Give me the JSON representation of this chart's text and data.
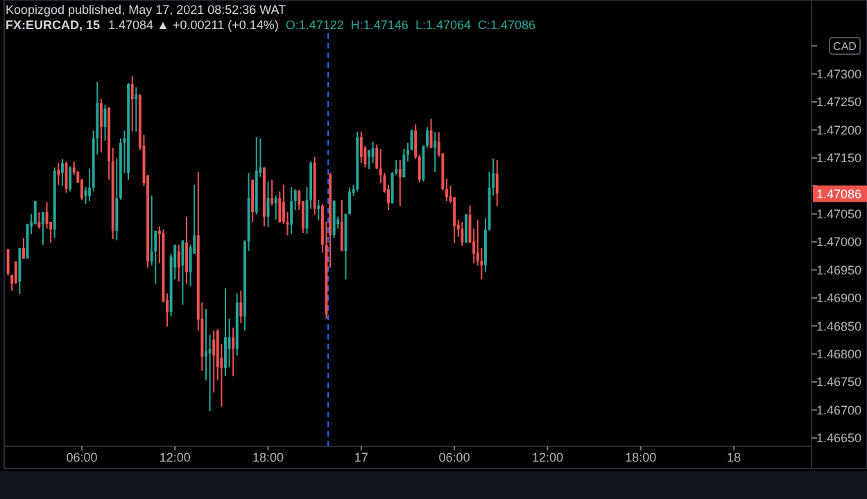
{
  "chart_data": {
    "type": "candlestick",
    "title": "FX:EURCAD, 15",
    "subtitle": "Koopizgod published, May 17, 2021 08:52:36 WAT",
    "annotations": [
      "1.47084 ▲ +0.00211 (+0.14%)",
      "O:1.47122",
      "H:1.47146",
      "L:1.47064",
      "C:1.47086",
      "1.47086",
      "CAD"
    ],
    "x": [
      "2021-05-16T01:15",
      "2021-05-16T01:30",
      "2021-05-16T01:45",
      "2021-05-16T02:00",
      "2021-05-16T02:15",
      "2021-05-16T02:30",
      "2021-05-16T02:45",
      "2021-05-16T03:00",
      "2021-05-16T03:15",
      "2021-05-16T03:30",
      "2021-05-16T03:45",
      "2021-05-16T04:00",
      "2021-05-16T04:15",
      "2021-05-16T04:30",
      "2021-05-16T04:45",
      "2021-05-16T05:00",
      "2021-05-16T05:15",
      "2021-05-16T05:30",
      "2021-05-16T05:45",
      "2021-05-16T06:00",
      "2021-05-16T06:15",
      "2021-05-16T06:30",
      "2021-05-16T06:45",
      "2021-05-16T07:00",
      "2021-05-16T07:15",
      "2021-05-16T07:30",
      "2021-05-16T07:45",
      "2021-05-16T08:00",
      "2021-05-16T08:15",
      "2021-05-16T08:30",
      "2021-05-16T08:45",
      "2021-05-16T09:00",
      "2021-05-16T09:15",
      "2021-05-16T09:30",
      "2021-05-16T09:45",
      "2021-05-16T10:00",
      "2021-05-16T10:15",
      "2021-05-16T10:30",
      "2021-05-16T10:45",
      "2021-05-16T11:00",
      "2021-05-16T11:15",
      "2021-05-16T11:30",
      "2021-05-16T11:45",
      "2021-05-16T12:00",
      "2021-05-16T12:15",
      "2021-05-16T12:30",
      "2021-05-16T12:45",
      "2021-05-16T13:00",
      "2021-05-16T13:15",
      "2021-05-16T13:30",
      "2021-05-16T13:45",
      "2021-05-16T14:00",
      "2021-05-16T14:15",
      "2021-05-16T14:30",
      "2021-05-16T14:45",
      "2021-05-16T15:00",
      "2021-05-16T15:15",
      "2021-05-16T15:30",
      "2021-05-16T15:45",
      "2021-05-16T16:00",
      "2021-05-16T16:15",
      "2021-05-16T16:30",
      "2021-05-16T16:45",
      "2021-05-16T17:00",
      "2021-05-16T17:15",
      "2021-05-16T17:30",
      "2021-05-16T17:45",
      "2021-05-16T18:00",
      "2021-05-16T18:15",
      "2021-05-16T18:30",
      "2021-05-16T18:45",
      "2021-05-16T19:00",
      "2021-05-16T19:15",
      "2021-05-16T19:30",
      "2021-05-16T19:45",
      "2021-05-16T20:00",
      "2021-05-16T20:15",
      "2021-05-16T20:30",
      "2021-05-16T20:45",
      "2021-05-16T21:00",
      "2021-05-16T21:15",
      "2021-05-16T21:30",
      "2021-05-16T21:45",
      "2021-05-16T22:00",
      "2021-05-16T22:15",
      "2021-05-16T22:30",
      "2021-05-16T22:45",
      "2021-05-16T23:00",
      "2021-05-16T23:15",
      "2021-05-16T23:30",
      "2021-05-16T23:45",
      "2021-05-17T00:00",
      "2021-05-17T00:15",
      "2021-05-17T00:30",
      "2021-05-17T00:45",
      "2021-05-17T01:00",
      "2021-05-17T01:15",
      "2021-05-17T01:30",
      "2021-05-17T01:45",
      "2021-05-17T02:00",
      "2021-05-17T02:15",
      "2021-05-17T02:30",
      "2021-05-17T02:45",
      "2021-05-17T03:00",
      "2021-05-17T03:15",
      "2021-05-17T03:30",
      "2021-05-17T03:45",
      "2021-05-17T04:00",
      "2021-05-17T04:15",
      "2021-05-17T04:30",
      "2021-05-17T04:45",
      "2021-05-17T05:00",
      "2021-05-17T05:15",
      "2021-05-17T05:30",
      "2021-05-17T05:45",
      "2021-05-17T06:00",
      "2021-05-17T06:15",
      "2021-05-17T06:30",
      "2021-05-17T06:45",
      "2021-05-17T07:00",
      "2021-05-17T07:15",
      "2021-05-17T07:30",
      "2021-05-17T07:45",
      "2021-05-17T08:00",
      "2021-05-17T08:15",
      "2021-05-17T08:30",
      "2021-05-17T08:45"
    ],
    "ohlc": [
      [
        1.46987,
        1.46987,
        1.4694,
        1.46943
      ],
      [
        1.46941,
        1.46941,
        1.46913,
        1.46925
      ],
      [
        1.46965,
        1.46965,
        1.46925,
        1.46927
      ],
      [
        1.46929,
        1.46989,
        1.46907,
        1.46989
      ],
      [
        1.46989,
        1.47007,
        1.4697,
        1.4697
      ],
      [
        1.4697,
        1.47032,
        1.4697,
        1.47032
      ],
      [
        1.47028,
        1.4705,
        1.47014,
        1.47036
      ],
      [
        1.47032,
        1.47073,
        1.47031,
        1.47073
      ],
      [
        1.47036,
        1.47053,
        1.47024,
        1.47026
      ],
      [
        1.47032,
        1.47053,
        1.46995,
        1.47053
      ],
      [
        1.47053,
        1.47071,
        1.47024,
        1.47032
      ],
      [
        1.47036,
        1.47036,
        1.46999,
        1.47022
      ],
      [
        1.47022,
        1.47133,
        1.47007,
        1.47127
      ],
      [
        1.47129,
        1.47141,
        1.47102,
        1.47119
      ],
      [
        1.47123,
        1.47148,
        1.471,
        1.47141
      ],
      [
        1.47141,
        1.47144,
        1.47088,
        1.47094
      ],
      [
        1.47094,
        1.47135,
        1.4709,
        1.47133
      ],
      [
        1.47133,
        1.47144,
        1.47119,
        1.47123
      ],
      [
        1.47125,
        1.47127,
        1.47105,
        1.47106
      ],
      [
        1.47111,
        1.47113,
        1.47075,
        1.47078
      ],
      [
        1.47082,
        1.47098,
        1.47068,
        1.47092
      ],
      [
        1.47082,
        1.47131,
        1.47073,
        1.47097
      ],
      [
        1.47097,
        1.47199,
        1.4709,
        1.47185
      ],
      [
        1.47185,
        1.47286,
        1.47156,
        1.47248
      ],
      [
        1.47248,
        1.47255,
        1.4716,
        1.47205
      ],
      [
        1.47205,
        1.47245,
        1.47181,
        1.47238
      ],
      [
        1.4724,
        1.4724,
        1.47111,
        1.47144
      ],
      [
        1.47144,
        1.47168,
        1.47005,
        1.4702
      ],
      [
        1.4702,
        1.47149,
        1.47003,
        1.47078
      ],
      [
        1.47078,
        1.47185,
        1.47075,
        1.47177
      ],
      [
        1.47177,
        1.47199,
        1.47123,
        1.47185
      ],
      [
        1.47123,
        1.47284,
        1.47111,
        1.47282
      ],
      [
        1.47282,
        1.47296,
        1.47197,
        1.47255
      ],
      [
        1.47255,
        1.47276,
        1.47197,
        1.47263
      ],
      [
        1.47263,
        1.47263,
        1.47164,
        1.47168
      ],
      [
        1.47172,
        1.47191,
        1.471,
        1.47105
      ],
      [
        1.47119,
        1.47119,
        1.46954,
        1.46965
      ],
      [
        1.46965,
        1.47083,
        1.46958,
        1.46983
      ],
      [
        1.46983,
        1.4702,
        1.46925,
        1.4702
      ],
      [
        1.4702,
        1.47028,
        1.46962,
        1.47014
      ],
      [
        1.47016,
        1.47022,
        1.46892,
        1.46894
      ],
      [
        1.46896,
        1.46908,
        1.46849,
        1.46875
      ],
      [
        1.46875,
        1.46979,
        1.46867,
        1.46974
      ],
      [
        1.46954,
        1.46995,
        1.46933,
        1.46995
      ],
      [
        1.46983,
        1.46995,
        1.46929,
        1.46954
      ],
      [
        1.46958,
        1.47003,
        1.46888,
        1.47003
      ],
      [
        1.46999,
        1.47045,
        1.46925,
        1.46946
      ],
      [
        1.46946,
        1.46995,
        1.46921,
        1.46991
      ],
      [
        1.46979,
        1.47102,
        1.46979,
        1.47012
      ],
      [
        1.47012,
        1.47125,
        1.46842,
        1.46861
      ],
      [
        1.46863,
        1.46892,
        1.4677,
        1.46795
      ],
      [
        1.46795,
        1.4688,
        1.46753,
        1.46805
      ],
      [
        1.46801,
        1.46834,
        1.46698,
        1.46809
      ],
      [
        1.46826,
        1.46842,
        1.46731,
        1.46797
      ],
      [
        1.46842,
        1.46844,
        1.46753,
        1.46776
      ],
      [
        1.46793,
        1.46818,
        1.46706,
        1.46775
      ],
      [
        1.46775,
        1.46917,
        1.4676,
        1.4683
      ],
      [
        1.46809,
        1.46863,
        1.46776,
        1.4683
      ],
      [
        1.4683,
        1.46847,
        1.4676,
        1.46809
      ],
      [
        1.46809,
        1.46908,
        1.46797,
        1.46892
      ],
      [
        1.46892,
        1.46913,
        1.46855,
        1.46867
      ],
      [
        1.46867,
        1.47003,
        1.46842,
        1.47001
      ],
      [
        1.47001,
        1.47123,
        1.46984,
        1.47078
      ],
      [
        1.47111,
        1.47111,
        1.47036,
        1.47053
      ],
      [
        1.47053,
        1.47187,
        1.47049,
        1.47127
      ],
      [
        1.47123,
        1.47185,
        1.47116,
        1.47133
      ],
      [
        1.47133,
        1.47133,
        1.47028,
        1.47045
      ],
      [
        1.47045,
        1.47108,
        1.47026,
        1.47078
      ],
      [
        1.47078,
        1.47111,
        1.47065,
        1.47069
      ],
      [
        1.47069,
        1.47083,
        1.4704,
        1.47078
      ],
      [
        1.47078,
        1.4709,
        1.47034,
        1.47036
      ],
      [
        1.47072,
        1.47102,
        1.47032,
        1.47036
      ],
      [
        1.47036,
        1.47053,
        1.47012,
        1.47031
      ],
      [
        1.47031,
        1.47098,
        1.47014,
        1.47073
      ],
      [
        1.47073,
        1.47094,
        1.47057,
        1.47092
      ],
      [
        1.47092,
        1.47092,
        1.47057,
        1.47067
      ],
      [
        1.47073,
        1.47073,
        1.47016,
        1.47024
      ],
      [
        1.47024,
        1.47098,
        1.47014,
        1.47075
      ],
      [
        1.47075,
        1.47144,
        1.47059,
        1.47141
      ],
      [
        1.47141,
        1.47152,
        1.47049,
        1.47059
      ],
      [
        1.47059,
        1.47075,
        1.47039,
        1.47065
      ],
      [
        1.47065,
        1.47067,
        1.46981,
        1.46995
      ],
      [
        1.46995,
        1.47036,
        1.46863,
        1.46871
      ],
      [
        1.47121,
        1.47123,
        1.46954,
        1.47012
      ],
      [
        1.47012,
        1.47075,
        1.47007,
        1.47073
      ],
      [
        1.47032,
        1.47045,
        1.47024,
        1.4704
      ],
      [
        1.47036,
        1.47075,
        1.46984,
        1.46984
      ],
      [
        1.46984,
        1.4705,
        1.46933,
        1.4705
      ],
      [
        1.4705,
        1.47097,
        1.47049,
        1.4709
      ],
      [
        1.47088,
        1.47102,
        1.47082,
        1.47094
      ],
      [
        1.47094,
        1.47197,
        1.4709,
        1.47187
      ],
      [
        1.47187,
        1.47197,
        1.47141,
        1.47152
      ],
      [
        1.47168,
        1.47172,
        1.47133,
        1.47139
      ],
      [
        1.47152,
        1.47164,
        1.4713,
        1.47164
      ],
      [
        1.47152,
        1.47179,
        1.47141,
        1.47168
      ],
      [
        1.47168,
        1.47174,
        1.4713,
        1.47131
      ],
      [
        1.47131,
        1.47166,
        1.47105,
        1.47119
      ],
      [
        1.47119,
        1.47123,
        1.47088,
        1.4709
      ],
      [
        1.47094,
        1.47102,
        1.47057,
        1.47069
      ],
      [
        1.47069,
        1.47125,
        1.47069,
        1.47123
      ],
      [
        1.47123,
        1.47146,
        1.47119,
        1.4713
      ],
      [
        1.4713,
        1.47146,
        1.47064,
        1.47115
      ],
      [
        1.47115,
        1.47166,
        1.47115,
        1.47156
      ],
      [
        1.47156,
        1.47177,
        1.47144,
        1.47164
      ],
      [
        1.47164,
        1.47201,
        1.47164,
        1.47199
      ],
      [
        1.47199,
        1.4721,
        1.47148,
        1.47152
      ],
      [
        1.47152,
        1.47156,
        1.47106,
        1.47111
      ],
      [
        1.47111,
        1.47172,
        1.47108,
        1.47172
      ],
      [
        1.47172,
        1.47205,
        1.47168,
        1.47199
      ],
      [
        1.47199,
        1.4722,
        1.47168,
        1.47168
      ],
      [
        1.47168,
        1.47196,
        1.47125,
        1.47181
      ],
      [
        1.47179,
        1.47196,
        1.47152,
        1.47156
      ],
      [
        1.47158,
        1.47158,
        1.47092,
        1.47094
      ],
      [
        1.47094,
        1.47113,
        1.47073,
        1.4708
      ],
      [
        1.47082,
        1.471,
        1.47069,
        1.47073
      ],
      [
        1.4708,
        1.4708,
        1.46998,
        1.47028
      ],
      [
        1.47031,
        1.4704,
        1.47009,
        1.47022
      ],
      [
        1.47024,
        1.47036,
        1.46993,
        1.46999
      ],
      [
        1.46999,
        1.4705,
        1.46998,
        1.47049
      ],
      [
        1.47049,
        1.47065,
        1.46998,
        1.46999
      ],
      [
        1.47001,
        1.47024,
        1.46962,
        1.46979
      ],
      [
        1.46981,
        1.47039,
        1.46958,
        1.46965
      ],
      [
        1.46966,
        1.46989,
        1.46933,
        1.46958
      ],
      [
        1.46958,
        1.47042,
        1.46946,
        1.47022
      ],
      [
        1.47022,
        1.47125,
        1.4702,
        1.47097
      ],
      [
        1.47097,
        1.47149,
        1.47083,
        1.47123
      ],
      [
        1.47122,
        1.47146,
        1.47064,
        1.47086
      ]
    ],
    "colors": [
      "#ef5350",
      "#ef5350",
      "#ef5350",
      "#26a69a",
      "#ef5350",
      "#26a69a",
      "#26a69a",
      "#26a69a",
      "#ef5350",
      "#26a69a",
      "#ef5350",
      "#ef5350",
      "#26a69a",
      "#ef5350",
      "#26a69a",
      "#ef5350",
      "#26a69a",
      "#ef5350",
      "#ef5350",
      "#ef5350",
      "#26a69a",
      "#26a69a",
      "#26a69a",
      "#26a69a",
      "#ef5350",
      "#26a69a",
      "#ef5350",
      "#ef5350",
      "#26a69a",
      "#26a69a",
      "#26a69a",
      "#26a69a",
      "#ef5350",
      "#26a69a",
      "#ef5350",
      "#ef5350",
      "#ef5350",
      "#26a69a",
      "#26a69a",
      "#ef5350",
      "#ef5350",
      "#ef5350",
      "#26a69a",
      "#26a69a",
      "#ef5350",
      "#26a69a",
      "#ef5350",
      "#26a69a",
      "#26a69a",
      "#ef5350",
      "#ef5350",
      "#26a69a",
      "#26a69a",
      "#ef5350",
      "#ef5350",
      "#ef5350",
      "#26a69a",
      "#26a69a",
      "#ef5350",
      "#26a69a",
      "#ef5350",
      "#26a69a",
      "#26a69a",
      "#ef5350",
      "#26a69a",
      "#26a69a",
      "#ef5350",
      "#26a69a",
      "#ef5350",
      "#26a69a",
      "#ef5350",
      "#ef5350",
      "#ef5350",
      "#26a69a",
      "#26a69a",
      "#ef5350",
      "#ef5350",
      "#26a69a",
      "#26a69a",
      "#ef5350",
      "#26a69a",
      "#ef5350",
      "#ef5350",
      "#ef5350",
      "#26a69a",
      "#26a69a",
      "#ef5350",
      "#26a69a",
      "#26a69a",
      "#26a69a",
      "#26a69a",
      "#ef5350",
      "#ef5350",
      "#26a69a",
      "#26a69a",
      "#ef5350",
      "#ef5350",
      "#ef5350",
      "#ef5350",
      "#26a69a",
      "#26a69a",
      "#ef5350",
      "#26a69a",
      "#26a69a",
      "#26a69a",
      "#ef5350",
      "#ef5350",
      "#26a69a",
      "#26a69a",
      "#ef5350",
      "#26a69a",
      "#ef5350",
      "#ef5350",
      "#ef5350",
      "#ef5350",
      "#ef5350",
      "#ef5350",
      "#ef5350",
      "#26a69a",
      "#ef5350",
      "#ef5350",
      "#ef5350",
      "#ef5350",
      "#26a69a",
      "#26a69a",
      "#26a69a",
      "#ef5350"
    ],
    "xlim": [
      "2021-05-16T01:00",
      "2021-05-18T05:00"
    ],
    "xticks": [
      {
        "value": "2021-05-16T06:00",
        "label": "06:00"
      },
      {
        "value": "2021-05-16T12:00",
        "label": "12:00"
      },
      {
        "value": "2021-05-16T18:00",
        "label": "18:00"
      },
      {
        "value": "2021-05-17",
        "label": "17"
      },
      {
        "value": "2021-05-17T06:00",
        "label": "06:00"
      },
      {
        "value": "2021-05-17T12:00",
        "label": "12:00"
      },
      {
        "value": "2021-05-17T18:00",
        "label": "18:00"
      },
      {
        "value": "2021-05-18",
        "label": "18"
      }
    ],
    "ylim": [
      1.46635,
      1.47432
    ],
    "yticks": [
      {
        "value": 1.4665,
        "label": "1.46650"
      },
      {
        "value": 1.467,
        "label": "1.46700"
      },
      {
        "value": 1.4675,
        "label": "1.46750"
      },
      {
        "value": 1.468,
        "label": "1.46800"
      },
      {
        "value": 1.4685,
        "label": "1.46850"
      },
      {
        "value": 1.469,
        "label": "1.46900"
      },
      {
        "value": 1.4695,
        "label": "1.46950"
      },
      {
        "value": 1.47,
        "label": "1.47000"
      },
      {
        "value": 1.4705,
        "label": "1.47050"
      },
      {
        "value": 1.471,
        "label": null
      },
      {
        "value": 1.4715,
        "label": "1.47150"
      },
      {
        "value": 1.472,
        "label": "1.47200"
      },
      {
        "value": 1.4725,
        "label": "1.47250"
      },
      {
        "value": 1.473,
        "label": "1.47300"
      },
      {
        "value": 1.4735,
        "label": null
      }
    ],
    "ref_lines": [
      {
        "axis": "x",
        "value": "2021-05-16T21:52",
        "color": "#2962ff",
        "line_style": "dashed"
      }
    ]
  }
}
